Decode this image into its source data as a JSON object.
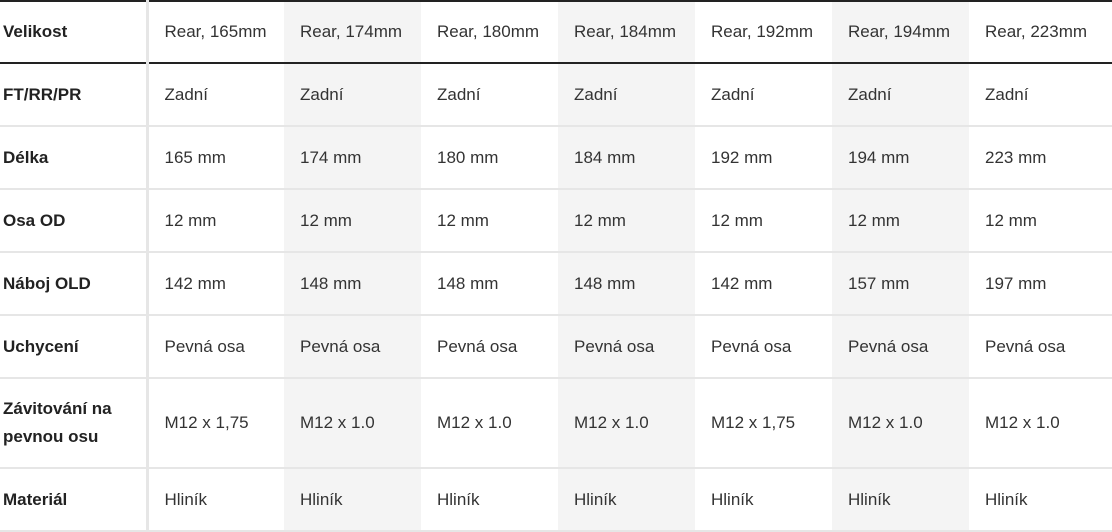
{
  "columns": [
    "Rear, 165mm",
    "Rear, 174mm",
    "Rear, 180mm",
    "Rear, 184mm",
    "Rear, 192mm",
    "Rear, 194mm",
    "Rear, 223mm"
  ],
  "header_label": "Velikost",
  "rows": [
    {
      "label": "FT/RR/PR",
      "values": [
        "Zadní",
        "Zadní",
        "Zadní",
        "Zadní",
        "Zadní",
        "Zadní",
        "Zadní"
      ]
    },
    {
      "label": "Délka",
      "values": [
        "165 mm",
        "174 mm",
        "180 mm",
        "184 mm",
        "192 mm",
        "194 mm",
        "223 mm"
      ]
    },
    {
      "label": "Osa OD",
      "values": [
        "12 mm",
        "12 mm",
        "12 mm",
        "12 mm",
        "12 mm",
        "12 mm",
        "12 mm"
      ]
    },
    {
      "label": "Náboj OLD",
      "values": [
        "142 mm",
        "148 mm",
        "148 mm",
        "148 mm",
        "142 mm",
        "157 mm",
        "197 mm"
      ]
    },
    {
      "label": "Uchycení",
      "values": [
        "Pevná osa",
        "Pevná osa",
        "Pevná osa",
        "Pevná osa",
        "Pevná osa",
        "Pevná osa",
        "Pevná osa"
      ]
    },
    {
      "label": "Závitování na pevnou osu",
      "values": [
        "M12 x 1,75",
        "M12 x 1.0",
        "M12 x 1.0",
        "M12 x 1.0",
        "M12 x 1,75",
        "M12 x 1.0",
        "M12 x 1.0"
      ]
    },
    {
      "label": "Materiál",
      "values": [
        "Hliník",
        "Hliník",
        "Hliník",
        "Hliník",
        "Hliník",
        "Hliník",
        "Hliník"
      ]
    }
  ],
  "colors": {
    "shaded_column": "#f4f4f4",
    "header_rule": "#222222",
    "row_rule": "#e6e6e6"
  }
}
